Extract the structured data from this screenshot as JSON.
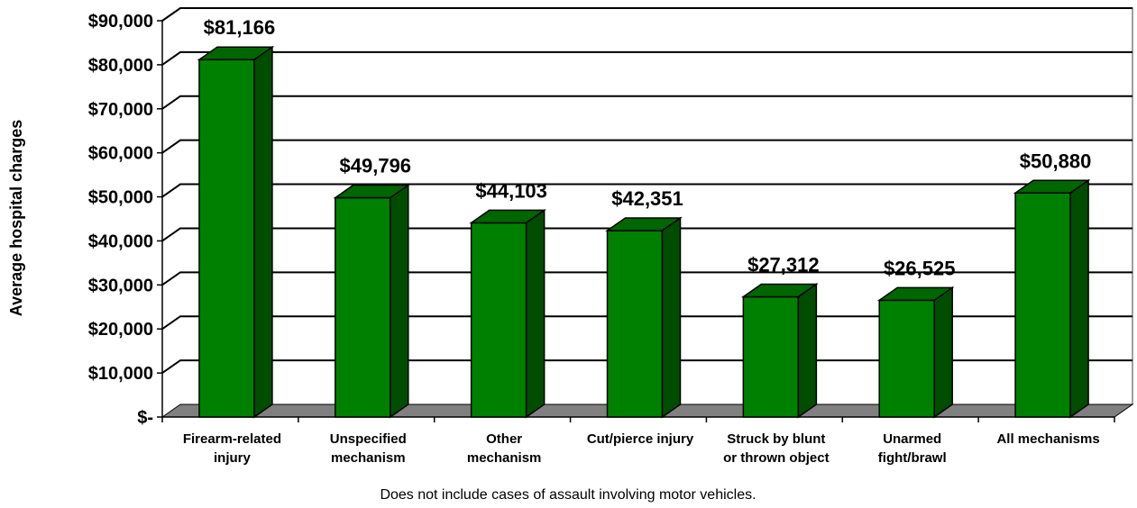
{
  "chart_data": {
    "type": "bar",
    "title": "",
    "xlabel": "",
    "ylabel": "Average hospital charges",
    "ylim": [
      0,
      90000
    ],
    "y_ticks": [
      "$-",
      "$10,000",
      "$20,000",
      "$30,000",
      "$40,000",
      "$50,000",
      "$60,000",
      "$70,000",
      "$80,000",
      "$90,000"
    ],
    "categories": [
      [
        "Firearm-related",
        "injury"
      ],
      [
        "Unspecified",
        "mechanism"
      ],
      [
        "Other",
        "mechanism"
      ],
      [
        "Cut/pierce injury"
      ],
      [
        "Struck by blunt",
        "or thrown object"
      ],
      [
        "Unarmed",
        "fight/brawl"
      ],
      [
        "All mechanisms"
      ]
    ],
    "values": [
      81166,
      49796,
      44103,
      42351,
      27312,
      26525,
      50880
    ],
    "data_labels": [
      "$81,166",
      "$49,796",
      "$44,103",
      "$42,351",
      "$27,312",
      "$26,525",
      "$50,880"
    ],
    "grid": true,
    "style": "3d",
    "colors": {
      "bar_front": "#008000",
      "bar_top": "#006600",
      "bar_side": "#004d00",
      "floor": "#808080"
    },
    "footnote": "Does not include cases of assault involving motor vehicles."
  }
}
